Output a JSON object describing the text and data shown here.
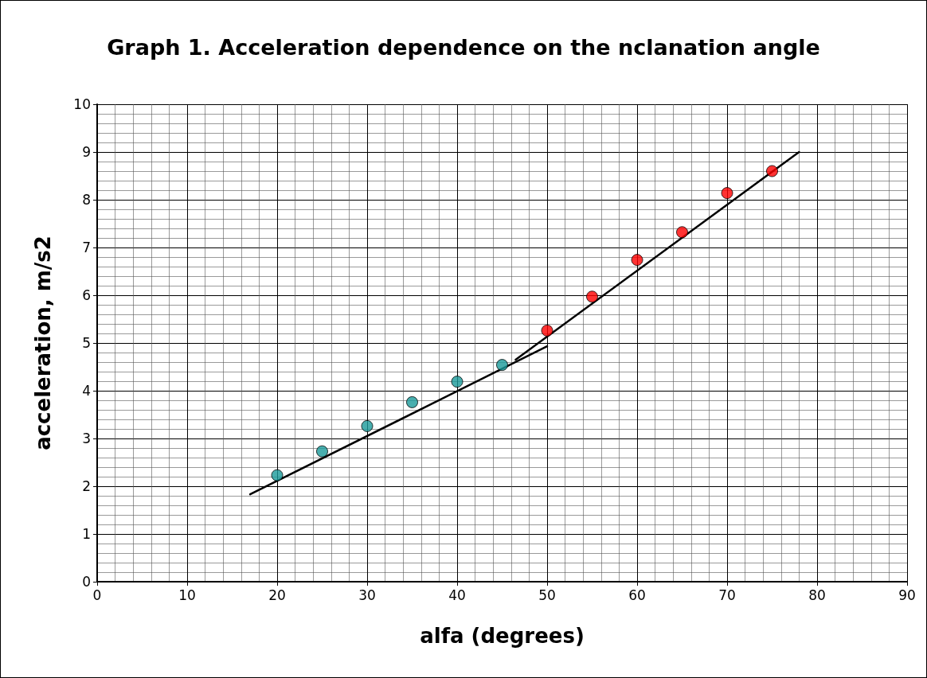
{
  "chart_data": {
    "type": "scatter",
    "title": "Graph 1. Acceleration dependence on the nclanation angle",
    "xlabel": "alfa (degrees)",
    "ylabel": "acceleration, m/s2",
    "xlim": [
      0,
      90
    ],
    "xticks": [
      0,
      10,
      20,
      30,
      40,
      50,
      60,
      70,
      80,
      90
    ],
    "ylim": [
      0,
      10
    ],
    "yticks": [
      0,
      1,
      2,
      3,
      4,
      5,
      6,
      7,
      8,
      9,
      10
    ],
    "grid": true,
    "marker": "circle",
    "series": [
      {
        "type": "line",
        "color": "#000000",
        "marker": "none",
        "x": [
          17,
          50
        ],
        "values": [
          1.83,
          4.93
        ]
      },
      {
        "type": "line",
        "color": "#000000",
        "marker": "none",
        "x": [
          46.5,
          78
        ],
        "values": [
          4.65,
          9.0
        ]
      },
      {
        "color": "#1a9a9a",
        "x": [
          20,
          25,
          30,
          35,
          40,
          45
        ],
        "values": [
          2.23,
          2.73,
          3.26,
          3.76,
          4.19,
          4.54
        ]
      },
      {
        "color": "#ff0000",
        "x": [
          50,
          55,
          60,
          65,
          70,
          75
        ],
        "values": [
          5.26,
          5.97,
          6.74,
          7.32,
          8.14,
          8.6
        ]
      }
    ]
  }
}
